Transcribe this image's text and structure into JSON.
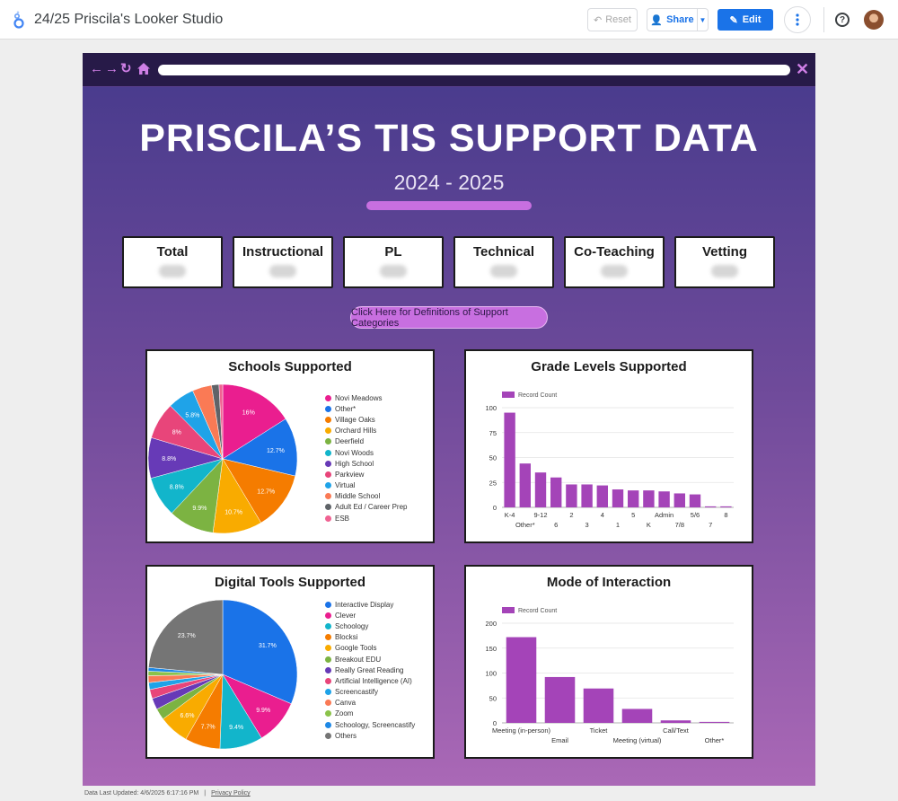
{
  "app": {
    "title": "24/25 Priscila's Looker Studio"
  },
  "toolbar": {
    "reset_label": "Reset",
    "share_label": "Share",
    "edit_label": "Edit"
  },
  "header": {
    "title": "PRISCILA’S TIS SUPPORT DATA",
    "subtitle": "2024 - 2025"
  },
  "stat_cards": [
    {
      "label": "Total"
    },
    {
      "label": "Instructional"
    },
    {
      "label": "PL"
    },
    {
      "label": "Technical"
    },
    {
      "label": "Co-Teaching"
    },
    {
      "label": "Vetting"
    }
  ],
  "definitions_button": "Click Here for Definitions of Support Categories",
  "footer": {
    "updated": "Data Last Updated: 4/6/2025 6:17:16 PM",
    "privacy": "Privacy Policy"
  },
  "colors": {
    "accent": "#c86fe0",
    "bar": "#a444b8",
    "edit_button": "#1a73e8"
  },
  "chart_data": [
    {
      "type": "pie",
      "title": "Schools Supported",
      "slices": [
        {
          "label": "Novi Meadows",
          "value": 16,
          "color": "#ea1e8f",
          "pct_label": "16%"
        },
        {
          "label": "Other*",
          "value": 12.7,
          "color": "#1a73e8",
          "pct_label": "12.7%"
        },
        {
          "label": "Village Oaks",
          "value": 12.7,
          "color": "#f57c00",
          "pct_label": "12.7%"
        },
        {
          "label": "Orchard Hills",
          "value": 10.7,
          "color": "#f9ab00",
          "pct_label": "10.7%"
        },
        {
          "label": "Deerfield",
          "value": 9.9,
          "color": "#7cb342",
          "pct_label": "9.9%"
        },
        {
          "label": "Novi Woods",
          "value": 8.8,
          "color": "#12b5cb",
          "pct_label": "8.8%"
        },
        {
          "label": "High School",
          "value": 8.8,
          "color": "#673ab7",
          "pct_label": "8.8%"
        },
        {
          "label": "Parkview",
          "value": 8,
          "color": "#e8457a",
          "pct_label": "8%"
        },
        {
          "label": "Virtual",
          "value": 5.8,
          "color": "#1fa3e8",
          "pct_label": "5.8%"
        },
        {
          "label": "Middle School",
          "value": 4.2,
          "color": "#fa7a55",
          "pct_label": ""
        },
        {
          "label": "Adult Ed / Career Prep",
          "value": 1.6,
          "color": "#5f6368",
          "pct_label": ""
        },
        {
          "label": "ESB",
          "value": 0.8,
          "color": "#f06292",
          "pct_label": ""
        }
      ]
    },
    {
      "type": "bar",
      "title": "Grade Levels Supported",
      "legend": "Record Count",
      "categories": [
        "K-4",
        "Other*",
        "9-12",
        "6",
        "2",
        "3",
        "4",
        "1",
        "5",
        "K",
        "Admin",
        "7/8",
        "5/6",
        "7",
        "8"
      ],
      "values": [
        95,
        44,
        35,
        30,
        23,
        23,
        22,
        18,
        17,
        17,
        16,
        14,
        13,
        1,
        1
      ],
      "yticks": [
        0,
        25,
        50,
        75,
        100
      ],
      "ylim": [
        0,
        100
      ]
    },
    {
      "type": "pie",
      "title": "Digital Tools Supported",
      "slices": [
        {
          "label": "Interactive Display",
          "value": 31.7,
          "color": "#1a73e8",
          "pct_label": "31.7%"
        },
        {
          "label": "Clever",
          "value": 9.9,
          "color": "#ea1e8f",
          "pct_label": "9.9%"
        },
        {
          "label": "Schoology",
          "value": 9.4,
          "color": "#12b5cb",
          "pct_label": "9.4%"
        },
        {
          "label": "Blocksi",
          "value": 7.7,
          "color": "#f57c00",
          "pct_label": "7.7%"
        },
        {
          "label": "Google Tools",
          "value": 6.6,
          "color": "#f9ab00",
          "pct_label": "6.6%"
        },
        {
          "label": "Breakout EDU",
          "value": 2.5,
          "color": "#7cb342",
          "pct_label": ""
        },
        {
          "label": "Really Great Reading",
          "value": 2.5,
          "color": "#673ab7",
          "pct_label": ""
        },
        {
          "label": "Artificial Intelligence (AI)",
          "value": 2,
          "color": "#e8457a",
          "pct_label": ""
        },
        {
          "label": "Screencastify",
          "value": 1.5,
          "color": "#1fa3e8",
          "pct_label": ""
        },
        {
          "label": "Canva",
          "value": 1.5,
          "color": "#fa7a55",
          "pct_label": ""
        },
        {
          "label": "Zoom",
          "value": 1,
          "color": "#8bc34a",
          "pct_label": ""
        },
        {
          "label": "Schoology, Screencastify",
          "value": 0.8,
          "color": "#1e88e5",
          "pct_label": ""
        },
        {
          "label": "Others",
          "value": 23.7,
          "color": "#757575",
          "pct_label": "23.7%"
        }
      ]
    },
    {
      "type": "bar",
      "title": "Mode of Interaction",
      "legend": "Record Count",
      "categories": [
        "Meeting (in-person)",
        "Email",
        "Ticket",
        "Meeting (virtual)",
        "Call/Text",
        "Other*"
      ],
      "values": [
        172,
        92,
        69,
        28,
        5,
        2
      ],
      "yticks": [
        0,
        50,
        100,
        150,
        200
      ],
      "ylim": [
        0,
        200
      ]
    }
  ]
}
